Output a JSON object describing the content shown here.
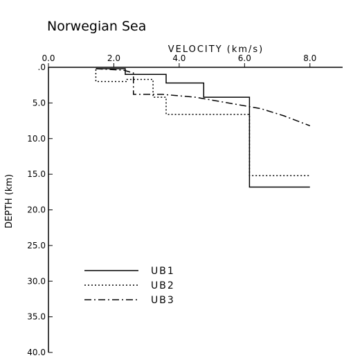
{
  "chart_data": {
    "type": "line",
    "title": "Norwegian Sea",
    "xlabel": "VELOCITY (km/s)",
    "ylabel": "DEPTH (km)",
    "xlim": [
      0,
      9
    ],
    "ylim": [
      0,
      40
    ],
    "xticks": [
      {
        "value": 0,
        "label": "0.0"
      },
      {
        "value": 2,
        "label": "2.0"
      },
      {
        "value": 4,
        "label": "4.0"
      },
      {
        "value": 6,
        "label": "6.0"
      },
      {
        "value": 8,
        "label": "8.0"
      }
    ],
    "yticks": [
      {
        "value": 0,
        "label": ".0"
      },
      {
        "value": 5,
        "label": "5.0"
      },
      {
        "value": 10,
        "label": "10.0"
      },
      {
        "value": 15,
        "label": "15.0"
      },
      {
        "value": 20,
        "label": "20.0"
      },
      {
        "value": 25,
        "label": "25.0"
      },
      {
        "value": 30,
        "label": "30.0"
      },
      {
        "value": 35,
        "label": "35.0"
      },
      {
        "value": 40,
        "label": "40.0"
      }
    ],
    "series": [
      {
        "name": "UB1",
        "color": "#000000",
        "dash": "none",
        "x": [
          1.45,
          2.35,
          2.35,
          3.6,
          3.6,
          4.75,
          4.75,
          6.15,
          6.15,
          8.0
        ],
        "values": [
          0.2,
          0.2,
          1.0,
          1.0,
          2.2,
          2.2,
          4.2,
          4.2,
          16.8,
          16.8
        ]
      },
      {
        "name": "UB2",
        "color": "#000000",
        "dash": "2,3",
        "x": [
          1.45,
          1.45,
          2.4,
          2.4,
          3.2,
          3.2,
          3.6,
          3.6,
          6.15,
          6.15,
          8.0
        ],
        "values": [
          0.3,
          2.0,
          2.0,
          1.7,
          1.7,
          4.2,
          4.2,
          6.6,
          6.6,
          15.2,
          15.2
        ]
      },
      {
        "name": "UB3",
        "color": "#000000",
        "dash": "10,4,2,4",
        "x": [
          1.45,
          2.3,
          2.6,
          2.6,
          3.5,
          4.5,
          5.5,
          6.5,
          7.2,
          8.0
        ],
        "values": [
          0.2,
          0.4,
          0.8,
          3.8,
          3.8,
          4.2,
          5.0,
          5.8,
          6.8,
          8.2
        ]
      }
    ]
  }
}
